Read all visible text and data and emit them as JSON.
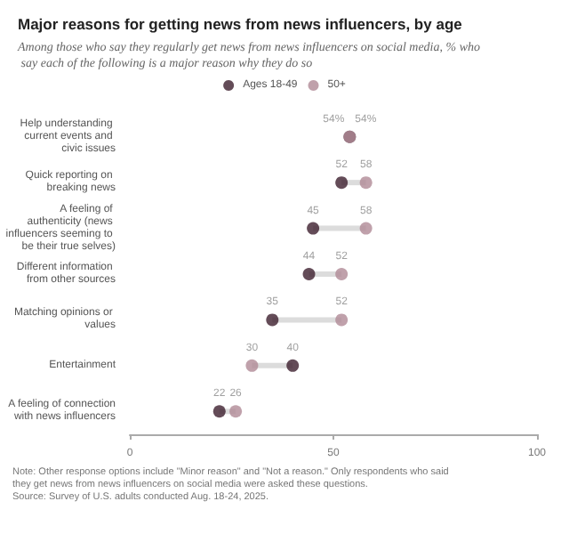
{
  "chart_data": {
    "type": "scatter",
    "orientation": "horizontal",
    "title": "Major reasons for getting news from news influencers, by age",
    "subtitle": "Among those who say they regularly get news from news influencers on social media, % who say each of the following is a major reason why they do so",
    "categories": [
      "Help understanding current events and civic issues",
      "Quick reporting on breaking news",
      "A feeling of authenticity (news influencers seeming to be their true selves)",
      "Different information from other sources",
      "Matching opinions or values",
      "Entertainment",
      "A feeling of connection with news influencers"
    ],
    "series": [
      {
        "name": "Ages 18-49",
        "color": "#3d1f2e",
        "values": [
          54,
          52,
          45,
          44,
          35,
          40,
          22
        ],
        "value_labels": [
          "54%",
          "52",
          "45",
          "44",
          "35",
          "40",
          "22"
        ]
      },
      {
        "name": "50+",
        "color": "#b08a96",
        "values": [
          54,
          58,
          58,
          52,
          52,
          30,
          26
        ],
        "value_labels": [
          "54%",
          "58",
          "58",
          "52",
          "52",
          "30",
          "26"
        ]
      }
    ],
    "xlim": [
      0,
      100
    ],
    "xticks": [
      0,
      50,
      100
    ],
    "legend": "top",
    "marker": "circle",
    "annotations": [
      "Note: Other response options include \"Minor reason\" and \"Not a reason.\" Only respondents who said they get news from news influencers on social media were asked these questions.",
      "Source: Survey of U.S. adults conducted Aug. 18-24, 2025."
    ]
  }
}
